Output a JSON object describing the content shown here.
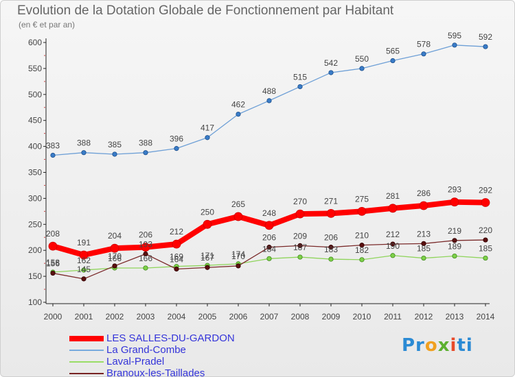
{
  "chart_data": {
    "type": "line",
    "title": "Evolution de la Dotation Globale de Fonctionnement par Habitant",
    "subtitle": "(en € et par an)",
    "xlabel": "",
    "ylabel": "",
    "ylim": [
      100,
      600
    ],
    "yticks": [
      100,
      150,
      200,
      250,
      300,
      350,
      400,
      450,
      500,
      550,
      600
    ],
    "categories": [
      "2000",
      "2001",
      "2002",
      "2003",
      "2004",
      "2005",
      "2006",
      "2007",
      "2008",
      "2009",
      "2010",
      "2011",
      "2012",
      "2013",
      "2014"
    ],
    "grid": false,
    "legend_position": "bottom-left",
    "series": [
      {
        "name": "LES SALLES-DU-GARDON",
        "color": "#ff0000",
        "values": [
          208,
          191,
          204,
          206,
          212,
          250,
          265,
          248,
          270,
          271,
          275,
          281,
          286,
          293,
          292
        ]
      },
      {
        "name": "La Grand-Combe",
        "color": "#77aadd",
        "values": [
          383,
          388,
          385,
          388,
          396,
          417,
          462,
          488,
          515,
          542,
          550,
          565,
          578,
          595,
          592
        ]
      },
      {
        "name": "Laval-Pradel",
        "color": "#99dd66",
        "values": [
          158,
          162,
          166,
          166,
          169,
          171,
          174,
          184,
          187,
          183,
          182,
          190,
          185,
          189,
          185
        ]
      },
      {
        "name": "Branoux-les-Taillades",
        "color": "#772222",
        "values": [
          156,
          145,
          170,
          193,
          164,
          167,
          170,
          206,
          209,
          206,
          210,
          212,
          213,
          219,
          220
        ]
      }
    ],
    "data_labels": [
      {
        "series": 0,
        "values": [
          "208",
          "191",
          "204",
          "206",
          "212",
          "250",
          "265",
          "248",
          "270",
          "271",
          "275",
          "281",
          "286",
          "293",
          "292"
        ]
      },
      {
        "series": 1,
        "values": [
          "383",
          "388",
          "385",
          "388",
          "396",
          "417",
          "462",
          "488",
          "515",
          "542",
          "550",
          "565",
          "578",
          "595",
          "592"
        ]
      },
      {
        "series": 2,
        "values": [
          "158",
          "162",
          "166",
          "166",
          "169",
          "171",
          "174",
          "184",
          "187",
          "183",
          "182",
          "190",
          "185",
          "189",
          "185"
        ]
      },
      {
        "series": 3,
        "values": [
          "156",
          "145",
          "170",
          "193",
          "164",
          "167",
          "170",
          "206",
          "209",
          "206",
          "210",
          "212",
          "213",
          "219",
          "220"
        ]
      }
    ]
  },
  "logo": {
    "part1": "Pr",
    "part2": "o",
    "part3": "x",
    "part4": "i",
    "part5": "ti"
  },
  "colors": {
    "axis": "#222222",
    "label": "#555555",
    "legend_text": "#3434d9"
  }
}
